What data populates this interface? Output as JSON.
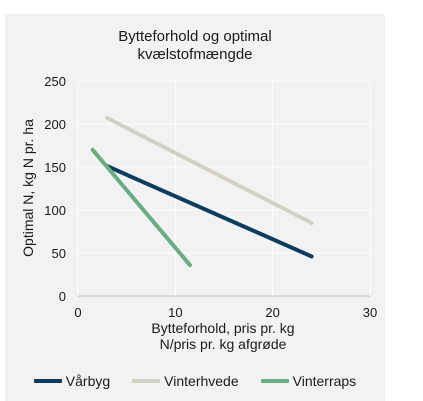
{
  "chart_data": {
    "type": "line",
    "title_lines": [
      "Bytteforhold og optimal",
      "kvælstofmængde"
    ],
    "xlabel_lines": [
      "Bytteforhold, pris pr. kg",
      "N/pris pr. kg afgrøde"
    ],
    "ylabel": "Optimal N, kg N pr. ha",
    "xlim": [
      0,
      30
    ],
    "ylim": [
      0,
      250
    ],
    "xticks": [
      0,
      10,
      20,
      30
    ],
    "yticks": [
      0,
      50,
      100,
      150,
      200,
      250
    ],
    "grid": true,
    "legend_position": "bottom",
    "series": [
      {
        "name": "Vårbyg",
        "color": "#0c3d5e",
        "points": [
          [
            3,
            151
          ],
          [
            24,
            46
          ]
        ]
      },
      {
        "name": "Vinterhvede",
        "color": "#d3d1c5",
        "points": [
          [
            3,
            207
          ],
          [
            24,
            85
          ]
        ]
      },
      {
        "name": "Vinterraps",
        "color": "#6aac83",
        "points": [
          [
            1.5,
            170
          ],
          [
            11.5,
            36
          ]
        ]
      }
    ]
  }
}
